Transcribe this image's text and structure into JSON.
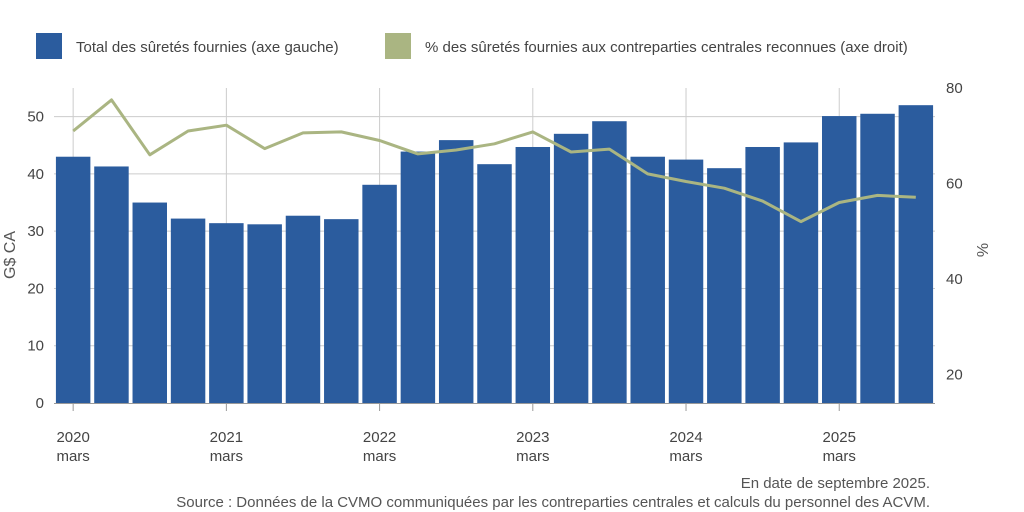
{
  "colors": {
    "bar": "#2b5c9e",
    "line": "#aab582",
    "grid": "#cccccc",
    "axis": "#999999",
    "text": "#444444"
  },
  "legend": {
    "bars_label": "Total des sûretés fournies (axe gauche)",
    "line_label": "% des sûretés fournies aux contreparties centrales reconnues (axe droit)"
  },
  "footnotes": {
    "date": "En date de septembre 2025.",
    "source": "Source : Données de la CVMO communiquées par les contreparties centrales et calculs du personnel des ACVM."
  },
  "chart_data": {
    "type": "bar+line",
    "categories": [
      "2020-03",
      "2020-06",
      "2020-09",
      "2020-12",
      "2021-03",
      "2021-06",
      "2021-09",
      "2021-12",
      "2022-03",
      "2022-06",
      "2022-09",
      "2022-12",
      "2023-03",
      "2023-06",
      "2023-09",
      "2023-12",
      "2024-03",
      "2024-06",
      "2024-09",
      "2024-12",
      "2025-03",
      "2025-06",
      "2025-09"
    ],
    "series": [
      {
        "name": "Total des sûretés fournies (axe gauche)",
        "type": "bar",
        "axis": "left",
        "values": [
          43.0,
          41.3,
          35.0,
          32.2,
          31.4,
          31.2,
          32.7,
          32.1,
          38.1,
          43.9,
          45.9,
          41.7,
          44.7,
          47.0,
          49.2,
          43.0,
          42.5,
          41.0,
          44.7,
          45.5,
          50.1,
          50.5,
          52.0
        ]
      },
      {
        "name": "% des sûretés fournies aux contreparties centrales reconnues (axe droit)",
        "type": "line",
        "axis": "right",
        "values": [
          71,
          77.5,
          66,
          71,
          72.2,
          67.3,
          70.6,
          70.8,
          69,
          66.2,
          67,
          68.3,
          70.8,
          66.6,
          67.2,
          62,
          60.4,
          59,
          56.3,
          52,
          56,
          57.5,
          57.1
        ]
      }
    ],
    "x_ticks": [
      {
        "year": "2020",
        "month": "mars",
        "index": 0
      },
      {
        "year": "2021",
        "month": "mars",
        "index": 4
      },
      {
        "year": "2022",
        "month": "mars",
        "index": 8
      },
      {
        "year": "2023",
        "month": "mars",
        "index": 12
      },
      {
        "year": "2024",
        "month": "mars",
        "index": 16
      },
      {
        "year": "2025",
        "month": "mars",
        "index": 20
      }
    ],
    "y_left": {
      "label": "G$ CA",
      "min": 0,
      "max": 55,
      "ticks": [
        0,
        10,
        20,
        30,
        40,
        50
      ]
    },
    "y_right": {
      "label": "%",
      "min": 14,
      "max": 80,
      "ticks": [
        20,
        40,
        60,
        80
      ]
    },
    "legend_position": "top"
  }
}
